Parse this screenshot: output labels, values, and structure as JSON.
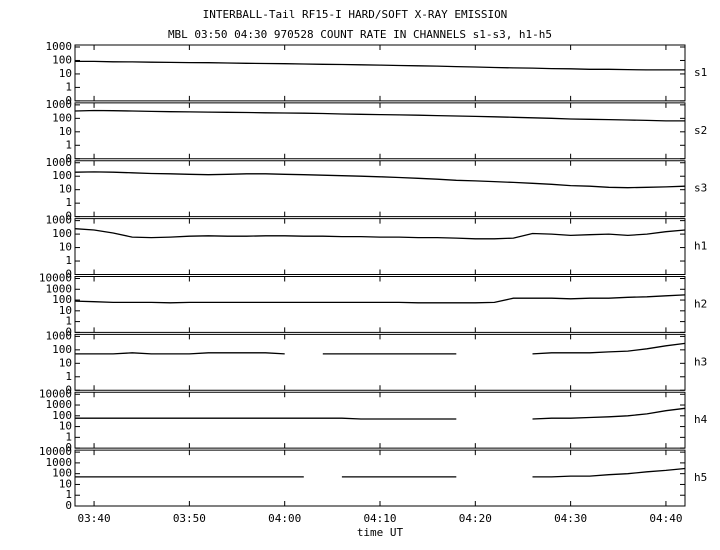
{
  "title": "INTERBALL-Tail RF15-I HARD/SOFT X-RAY EMISSION",
  "subtitle": "MBL 03:50 04:30 970528  COUNT RATE IN CHANNELS s1-s3, h1-h5",
  "time": {
    "xlabel": "time UT",
    "x": [
      "03:38",
      "03:40",
      "03:42",
      "03:44",
      "03:46",
      "03:48",
      "03:50",
      "03:52",
      "03:54",
      "03:56",
      "03:58",
      "04:00",
      "04:02",
      "04:04",
      "04:06",
      "04:08",
      "04:10",
      "04:12",
      "04:14",
      "04:16",
      "04:18",
      "04:20",
      "04:22",
      "04:24",
      "04:26",
      "04:28",
      "04:30",
      "04:32",
      "04:34",
      "04:36",
      "04:38",
      "04:40",
      "04:42"
    ],
    "xlim": [
      "03:38",
      "04:42"
    ],
    "xticks": [
      "03:40",
      "03:50",
      "04:00",
      "04:10",
      "04:20",
      "04:30",
      "04:40"
    ]
  },
  "chart_data": [
    {
      "type": "line",
      "label": "s1",
      "color": "#000000",
      "log": true,
      "ylim": [
        0.1,
        1000
      ],
      "yticks": [
        {
          "value": 0.1,
          "label": "0"
        },
        1,
        10,
        100,
        1000
      ],
      "values": [
        85,
        85,
        80,
        78,
        75,
        72,
        70,
        68,
        65,
        62,
        60,
        58,
        55,
        52,
        50,
        48,
        45,
        42,
        40,
        38,
        35,
        33,
        30,
        28,
        27,
        25,
        24,
        22,
        22,
        21,
        20,
        20,
        20
      ]
    },
    {
      "type": "line",
      "label": "s2",
      "color": "#000000",
      "log": true,
      "ylim": [
        0.1,
        1000
      ],
      "yticks": [
        {
          "value": 0.1,
          "label": "0"
        },
        1,
        10,
        100,
        1000
      ],
      "values": [
        350,
        380,
        370,
        350,
        330,
        310,
        300,
        290,
        280,
        270,
        260,
        250,
        240,
        230,
        210,
        200,
        190,
        180,
        170,
        160,
        150,
        140,
        130,
        120,
        110,
        100,
        90,
        85,
        80,
        75,
        70,
        65,
        65
      ]
    },
    {
      "type": "line",
      "label": "s3",
      "color": "#000000",
      "log": true,
      "ylim": [
        0.1,
        1000
      ],
      "yticks": [
        {
          "value": 0.1,
          "label": "0"
        },
        1,
        10,
        100,
        1000
      ],
      "values": [
        200,
        210,
        200,
        180,
        160,
        150,
        140,
        130,
        140,
        150,
        150,
        140,
        130,
        120,
        110,
        100,
        90,
        80,
        70,
        60,
        50,
        45,
        40,
        35,
        30,
        25,
        20,
        18,
        15,
        14,
        15,
        16,
        18
      ]
    },
    {
      "type": "line",
      "label": "h1",
      "color": "#000000",
      "log": true,
      "ylim": [
        0.1,
        1000
      ],
      "yticks": [
        {
          "value": 0.1,
          "label": "0"
        },
        1,
        10,
        100,
        1000
      ],
      "values": [
        250,
        200,
        120,
        60,
        55,
        60,
        70,
        75,
        70,
        70,
        75,
        75,
        70,
        70,
        65,
        65,
        60,
        60,
        55,
        55,
        50,
        45,
        45,
        50,
        110,
        100,
        80,
        90,
        100,
        80,
        100,
        150,
        200
      ]
    },
    {
      "type": "line",
      "label": "h2",
      "color": "#000000",
      "log": true,
      "ylim": [
        0.1,
        10000
      ],
      "yticks": [
        {
          "value": 0.1,
          "label": "0"
        },
        1,
        10,
        100,
        1000,
        10000
      ],
      "values": [
        80,
        70,
        60,
        60,
        60,
        55,
        60,
        60,
        60,
        60,
        60,
        60,
        60,
        60,
        60,
        60,
        60,
        60,
        55,
        55,
        55,
        55,
        60,
        150,
        150,
        150,
        130,
        150,
        150,
        180,
        200,
        250,
        300
      ]
    },
    {
      "type": "line",
      "label": "h3",
      "color": "#000000",
      "log": true,
      "ylim": [
        0.1,
        1000
      ],
      "yticks": [
        {
          "value": 0.1,
          "label": "0"
        },
        1,
        10,
        100,
        1000
      ],
      "values": [
        50,
        50,
        50,
        60,
        50,
        50,
        50,
        60,
        60,
        60,
        60,
        50,
        null,
        50,
        50,
        50,
        50,
        50,
        50,
        50,
        50,
        null,
        null,
        null,
        50,
        60,
        60,
        60,
        70,
        80,
        120,
        200,
        300
      ]
    },
    {
      "type": "line",
      "label": "h4",
      "color": "#000000",
      "log": true,
      "ylim": [
        0.1,
        10000
      ],
      "yticks": [
        {
          "value": 0.1,
          "label": "0"
        },
        1,
        10,
        100,
        1000,
        10000
      ],
      "values": [
        60,
        60,
        60,
        60,
        60,
        60,
        60,
        60,
        60,
        60,
        60,
        60,
        60,
        60,
        60,
        50,
        50,
        50,
        50,
        50,
        50,
        null,
        null,
        null,
        50,
        60,
        60,
        70,
        80,
        100,
        150,
        300,
        500
      ]
    },
    {
      "type": "line",
      "label": "h5",
      "color": "#000000",
      "log": true,
      "ylim": [
        0.1,
        10000
      ],
      "yticks": [
        {
          "value": 0.1,
          "label": "0"
        },
        1,
        10,
        100,
        1000,
        10000
      ],
      "values": [
        50,
        50,
        50,
        50,
        50,
        50,
        50,
        50,
        50,
        50,
        50,
        50,
        50,
        null,
        50,
        50,
        50,
        50,
        50,
        50,
        50,
        null,
        null,
        null,
        50,
        50,
        60,
        60,
        80,
        100,
        150,
        200,
        300
      ]
    }
  ]
}
